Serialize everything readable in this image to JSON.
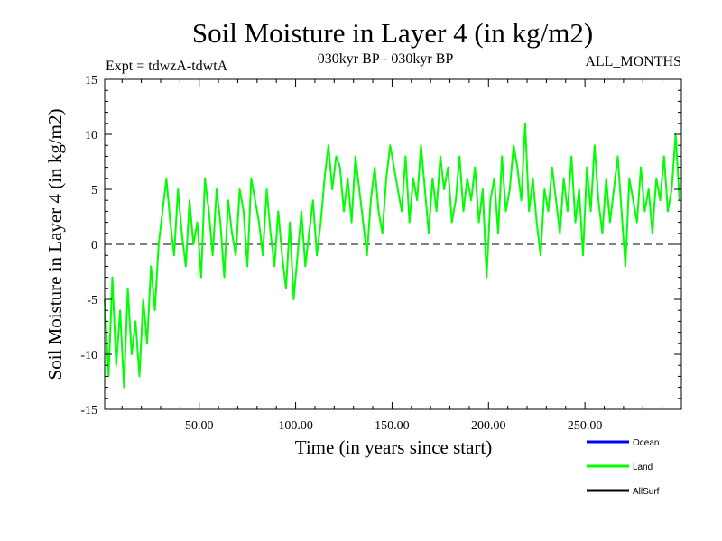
{
  "header": {
    "title": "Soil Moisture in Layer 4 (in kg/m2)",
    "experiment": "Expt = tdwzA-tdwtA",
    "period": "030kyr BP - 030kyr BP",
    "months": "ALL_MONTHS"
  },
  "legend": {
    "items": [
      {
        "label": "Ocean",
        "color": "#0000ff"
      },
      {
        "label": "Land",
        "color": "#00ff00"
      },
      {
        "label": "AllSurf",
        "color": "#000000"
      }
    ]
  },
  "chart_data": {
    "type": "line",
    "title": "Soil Moisture in Layer 4 (in kg/m2)",
    "xlabel": "Time (in years since start)",
    "ylabel": "Soil Moisture in Layer 4 (in kg/m2)",
    "xlim": [
      1,
      300
    ],
    "ylim": [
      -15,
      15
    ],
    "x_ticks": [
      50,
      100,
      150,
      200,
      250
    ],
    "x_tick_labels": [
      "50.00",
      "100.00",
      "150.00",
      "200.00",
      "250.00"
    ],
    "y_ticks": [
      -15,
      -10,
      -5,
      0,
      5,
      10,
      15
    ],
    "y_tick_labels": [
      "-15",
      "-10",
      "-5",
      "0",
      "5",
      "10",
      "15"
    ],
    "reference_line": {
      "y": 0,
      "style": "dashed"
    },
    "series": [
      {
        "name": "Land",
        "color": "#00ff00",
        "x": [
          1,
          3,
          5,
          7,
          9,
          11,
          13,
          15,
          17,
          19,
          21,
          23,
          25,
          27,
          29,
          31,
          33,
          35,
          37,
          39,
          41,
          43,
          45,
          47,
          49,
          51,
          53,
          55,
          57,
          59,
          61,
          63,
          65,
          67,
          69,
          71,
          73,
          75,
          77,
          79,
          81,
          83,
          85,
          87,
          89,
          91,
          93,
          95,
          97,
          99,
          101,
          103,
          105,
          107,
          109,
          111,
          113,
          115,
          117,
          119,
          121,
          123,
          125,
          127,
          129,
          131,
          133,
          135,
          137,
          139,
          141,
          143,
          145,
          147,
          149,
          151,
          153,
          155,
          157,
          159,
          161,
          163,
          165,
          167,
          169,
          171,
          173,
          175,
          177,
          179,
          181,
          183,
          185,
          187,
          189,
          191,
          193,
          195,
          197,
          199,
          201,
          203,
          205,
          207,
          209,
          211,
          213,
          215,
          217,
          219,
          221,
          223,
          225,
          227,
          229,
          231,
          233,
          235,
          237,
          239,
          241,
          243,
          245,
          247,
          249,
          251,
          253,
          255,
          257,
          259,
          261,
          263,
          265,
          267,
          269,
          271,
          273,
          275,
          277,
          279,
          281,
          283,
          285,
          287,
          289,
          291,
          293,
          295,
          297,
          299
        ],
        "values": [
          -5,
          -12,
          -3,
          -11,
          -6,
          -13,
          -4,
          -10,
          -7,
          -12,
          -5,
          -9,
          -2,
          -6,
          0,
          3,
          6,
          2,
          -1,
          5,
          1,
          -2,
          4,
          0,
          2,
          -3,
          6,
          3,
          -1,
          5,
          2,
          -3,
          4,
          1,
          -1,
          5,
          3,
          -2,
          6,
          4,
          2,
          -1,
          5,
          1,
          -2,
          3,
          -1,
          -4,
          2,
          -5,
          -1,
          3,
          -2,
          1,
          4,
          -1,
          2,
          6,
          9,
          5,
          8,
          7,
          3,
          6,
          2,
          8,
          5,
          2,
          -1,
          4,
          7,
          3,
          1,
          6,
          9,
          7,
          5,
          3,
          8,
          2,
          6,
          4,
          9,
          5,
          1,
          6,
          3,
          8,
          5,
          7,
          2,
          4,
          8,
          3,
          6,
          4,
          7,
          2,
          5,
          -3,
          4,
          6,
          1,
          8,
          3,
          5,
          9,
          7,
          4,
          11,
          3,
          6,
          2,
          -1,
          5,
          3,
          7,
          4,
          1,
          6,
          3,
          8,
          2,
          5,
          -1,
          7,
          3,
          9,
          4,
          1,
          6,
          2,
          5,
          8,
          3,
          -2,
          6,
          4,
          2,
          7,
          3,
          5,
          1,
          6,
          4,
          8,
          3,
          5,
          10,
          4
        ]
      }
    ]
  }
}
